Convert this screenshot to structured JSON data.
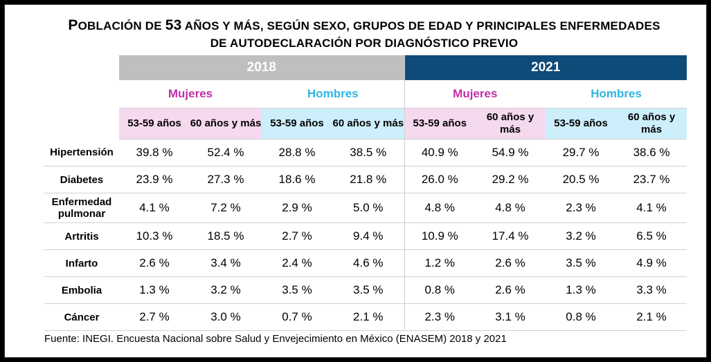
{
  "title": {
    "line1_first": "P",
    "line1_a": "OBLACIÓN DE ",
    "line1_num": "53",
    "line1_b": " AÑOS Y MÁS, SEGÚN SEXO, GRUPOS DE EDAD Y PRINCIPALES ENFERMEDADES",
    "line2": "DE AUTODECLARACIÓN POR DIAGNÓSTICO PREVIO"
  },
  "years": [
    "2018",
    "2021"
  ],
  "sex_labels": [
    "Mujeres",
    "Hombres",
    "Mujeres",
    "Hombres"
  ],
  "age_labels": [
    "53-59 años",
    "60 años y más",
    "53-59 años",
    "60 años y más",
    "53-59 años",
    "60 años y más",
    "53-59 años",
    "60 años y más"
  ],
  "rows": [
    {
      "label": "Hipertensión",
      "values": [
        "39.8 %",
        "52.4 %",
        "28.8 %",
        "38.5 %",
        "40.9 %",
        "54.9 %",
        "29.7 %",
        "38.6 %"
      ]
    },
    {
      "label": "Diabetes",
      "values": [
        "23.9 %",
        "27.3 %",
        "18.6 %",
        "21.8 %",
        "26.0 %",
        "29.2 %",
        "20.5 %",
        "23.7 %"
      ]
    },
    {
      "label": "Enfermedad pulmonar",
      "values": [
        "4.1 %",
        "7.2 %",
        "2.9 %",
        "5.0 %",
        "4.8 %",
        "4.8 %",
        "2.3 %",
        "4.1 %"
      ]
    },
    {
      "label": "Artritis",
      "values": [
        "10.3 %",
        "18.5 %",
        "2.7 %",
        "9.4 %",
        "10.9 %",
        "17.4 %",
        "3.2 %",
        "6.5 %"
      ]
    },
    {
      "label": "Infarto",
      "values": [
        "2.6 %",
        "3.4 %",
        "2.4 %",
        "4.6 %",
        "1.2 %",
        "2.6 %",
        "3.5 %",
        "4.9 %"
      ]
    },
    {
      "label": "Embolia",
      "values": [
        "1.3 %",
        "3.2 %",
        "3.5 %",
        "3.5 %",
        "0.8 %",
        "2.6 %",
        "1.3 %",
        "3.3 %"
      ]
    },
    {
      "label": "Cáncer",
      "values": [
        "2.7 %",
        "3.0 %",
        "0.7 %",
        "2.1 %",
        "2.3 %",
        "3.1 %",
        "0.8 %",
        "2.1 %"
      ]
    }
  ],
  "source": "Fuente: INEGI. Encuesta Nacional sobre Salud y Envejecimiento en México (ENASEM) 2018 y 2021",
  "colors": {
    "year_2018_bg": "#bfbfbf",
    "year_2021_bg": "#0f4b78",
    "mujeres_text": "#c12fa7",
    "hombres_text": "#2fb6e0",
    "mujeres_age_bg": "#f5d9ef",
    "hombres_age_bg": "#cdeefb"
  }
}
